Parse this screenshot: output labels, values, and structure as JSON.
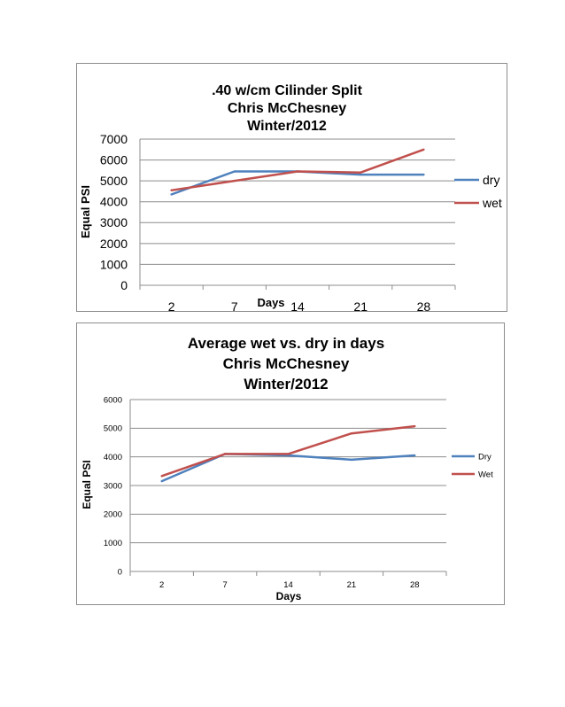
{
  "chart_data": [
    {
      "type": "line",
      "title_lines": [
        ".40 w/cm Cilinder Split",
        "Chris McChesney",
        "Winter/2012"
      ],
      "xlabel": "Days",
      "ylabel": "Equal PSI",
      "categories": [
        "2",
        "7",
        "14",
        "21",
        "28"
      ],
      "ylim": [
        0,
        7000
      ],
      "yticks": [
        "0",
        "1000",
        "2000",
        "3000",
        "4000",
        "5000",
        "6000",
        "7000"
      ],
      "grid": true,
      "legend_position": "right",
      "series": [
        {
          "name": "dry",
          "color": "#4f81bd",
          "values": [
            4350,
            5450,
            5450,
            5300,
            5300
          ]
        },
        {
          "name": "wet",
          "color": "#c0504d",
          "values": [
            4550,
            5000,
            5450,
            5400,
            6500
          ]
        }
      ]
    },
    {
      "type": "line",
      "title_lines": [
        "Average wet vs. dry in days",
        "Chris McChesney",
        "Winter/2012"
      ],
      "xlabel": "Days",
      "ylabel": "Equal PSI",
      "categories": [
        "2",
        "7",
        "14",
        "21",
        "28"
      ],
      "ylim": [
        0,
        6000
      ],
      "yticks": [
        "0",
        "1000",
        "2000",
        "3000",
        "4000",
        "5000",
        "6000"
      ],
      "grid": true,
      "legend_position": "right",
      "series": [
        {
          "name": "Dry",
          "color": "#4f81bd",
          "values": [
            3150,
            4100,
            4050,
            3900,
            4050
          ]
        },
        {
          "name": "Wet",
          "color": "#c0504d",
          "values": [
            3330,
            4100,
            4100,
            4820,
            5070
          ]
        }
      ]
    }
  ]
}
